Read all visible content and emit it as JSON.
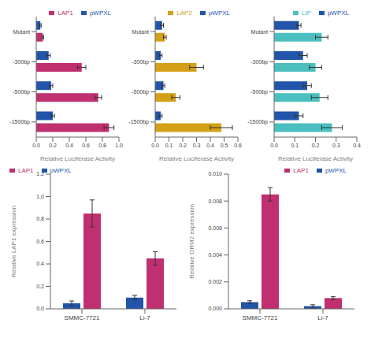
{
  "chart_data": [
    {
      "type": "bar",
      "orientation": "horizontal",
      "categories": [
        "-1500bp",
        "-500bp",
        "-300bp",
        "Mutant"
      ],
      "series": [
        {
          "name": "pWPXL",
          "color": "#2255aa",
          "values": [
            0.2,
            0.18,
            0.15,
            0.05
          ],
          "errors": [
            0.02,
            0.02,
            0.02,
            0.01
          ]
        },
        {
          "name": "LAP1",
          "color": "#c03070",
          "values": [
            0.88,
            0.75,
            0.55,
            0.08
          ],
          "errors": [
            0.06,
            0.04,
            0.05,
            0.01
          ]
        }
      ],
      "xlabel": "Relative Luciferase Activity",
      "xlim": [
        0,
        1.0
      ],
      "xticks": [
        {
          "value": 0,
          "label": "0.0"
        },
        0.2,
        0.4,
        0.6,
        0.8,
        {
          "value": 1,
          "label": "1.0"
        }
      ],
      "legend": "upper right"
    },
    {
      "type": "bar",
      "orientation": "horizontal",
      "categories": [
        "-1500bp",
        "-500bp",
        "-300bp",
        "Mutant"
      ],
      "series": [
        {
          "name": "pWPXL",
          "color": "#2255aa",
          "values": [
            0.04,
            0.06,
            0.04,
            0.05
          ],
          "errors": [
            0.01,
            0.01,
            0.01,
            0.01
          ]
        },
        {
          "name": "LAP2",
          "color": "#d4a017",
          "values": [
            0.48,
            0.15,
            0.3,
            0.07
          ],
          "errors": [
            0.08,
            0.03,
            0.05,
            0.01
          ]
        }
      ],
      "xlabel": "Relative Luciferase Activity",
      "xlim": [
        0,
        0.6
      ],
      "xticks": [
        {
          "value": 0,
          "label": "0.0"
        },
        0.1,
        0.2,
        0.3,
        0.4,
        0.5,
        0.6
      ],
      "legend": "upper right"
    },
    {
      "type": "bar",
      "orientation": "horizontal",
      "categories": [
        "-1500bp",
        "-500bp",
        "-300bp",
        "Mutant"
      ],
      "series": [
        {
          "name": "pWPXL",
          "color": "#2255aa",
          "values": [
            0.12,
            0.16,
            0.14,
            0.12
          ],
          "errors": [
            0.02,
            0.02,
            0.02,
            0.01
          ]
        },
        {
          "name": "LIP",
          "color": "#4bbfbf",
          "values": [
            0.28,
            0.22,
            0.2,
            0.23
          ],
          "errors": [
            0.05,
            0.04,
            0.03,
            0.03
          ]
        }
      ],
      "xlabel": "Relative Luciferase Activity",
      "xlim": [
        0,
        0.4
      ],
      "xticks": [
        {
          "value": 0,
          "label": "0.0"
        },
        0.1,
        0.2,
        0.3,
        0.4
      ],
      "legend": "upper right"
    },
    {
      "type": "bar",
      "categories": [
        "SMMC-7721",
        "Li-7"
      ],
      "series": [
        {
          "name": "pWPXL",
          "color": "#2255aa",
          "values": [
            0.05,
            0.1
          ],
          "errors": [
            0.02,
            0.02
          ]
        },
        {
          "name": "LAP1",
          "color": "#c03070",
          "values": [
            0.85,
            0.45
          ],
          "errors": [
            0.12,
            0.06
          ]
        }
      ],
      "ylabel": "Relative LAP1 expression",
      "ylim": [
        0,
        1.2
      ],
      "yticks": [
        {
          "value": 0,
          "label": "0.0"
        },
        0.2,
        0.4,
        0.6,
        0.8,
        {
          "value": 1,
          "label": "1.0"
        },
        1.2
      ],
      "legend": "upper left"
    },
    {
      "type": "bar",
      "categories": [
        "SMMC-7721",
        "Li-7"
      ],
      "series": [
        {
          "name": "pWPXL",
          "color": "#2255aa",
          "values": [
            0.0005,
            0.0002
          ],
          "errors": [
            0.0001,
            0.0001
          ]
        },
        {
          "name": "LAP1",
          "color": "#c03070",
          "values": [
            0.0085,
            0.0008
          ],
          "errors": [
            0.0005,
            0.0001
          ]
        }
      ],
      "ylabel": "Relative ORM2 expression",
      "ylim": [
        0,
        0.01
      ],
      "yticks": [
        {
          "value": 0,
          "label": "0.000"
        },
        0.002,
        0.004,
        0.006,
        0.008,
        {
          "value": 0.01,
          "label": "0.010"
        }
      ],
      "legend": "upper right"
    }
  ]
}
